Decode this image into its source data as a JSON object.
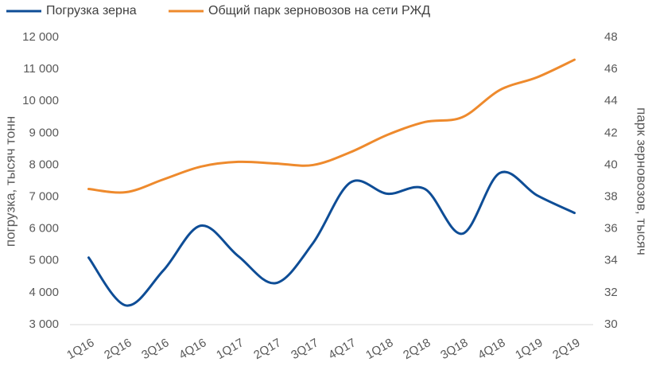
{
  "chart_data": {
    "type": "line",
    "categories": [
      "1Q16",
      "2Q16",
      "3Q16",
      "4Q16",
      "1Q17",
      "2Q17",
      "3Q17",
      "4Q17",
      "1Q18",
      "2Q18",
      "3Q18",
      "4Q18",
      "1Q19",
      "2Q19"
    ],
    "series": [
      {
        "name": "Погрузка зерна",
        "color": "#0e4d96",
        "values": [
          5100,
          3600,
          4700,
          6100,
          5150,
          4300,
          5550,
          7450,
          7100,
          7250,
          5850,
          7750,
          7050,
          6500
        ]
      },
      {
        "name": "Общий парк зерновозов на сети РЖД",
        "color": "#ee8a2d",
        "axis": "y2",
        "values": [
          38.5,
          38.3,
          39.1,
          39.9,
          40.2,
          40.1,
          40.0,
          40.8,
          41.9,
          42.7,
          43.0,
          44.7,
          45.5,
          46.6
        ]
      }
    ],
    "ylabel": "погрузка, тысяч тонн",
    "y2label": "парк зерновозов, тысяч",
    "ylim": [
      3000,
      12000
    ],
    "yticks": [
      {
        "value": 3000,
        "label": "3 000"
      },
      {
        "value": 4000,
        "label": "4 000"
      },
      {
        "value": 5000,
        "label": "5 000"
      },
      {
        "value": 6000,
        "label": "6 000"
      },
      {
        "value": 7000,
        "label": "7 000"
      },
      {
        "value": 8000,
        "label": "8 000"
      },
      {
        "value": 9000,
        "label": "9 000"
      },
      {
        "value": 10000,
        "label": "10 000"
      },
      {
        "value": 11000,
        "label": "11 000"
      },
      {
        "value": 12000,
        "label": "12 000"
      }
    ],
    "y2lim": [
      30,
      48
    ],
    "y2ticks": [
      30,
      32,
      34,
      36,
      38,
      40,
      42,
      44,
      46,
      48
    ],
    "grid": false,
    "legend": "top"
  }
}
